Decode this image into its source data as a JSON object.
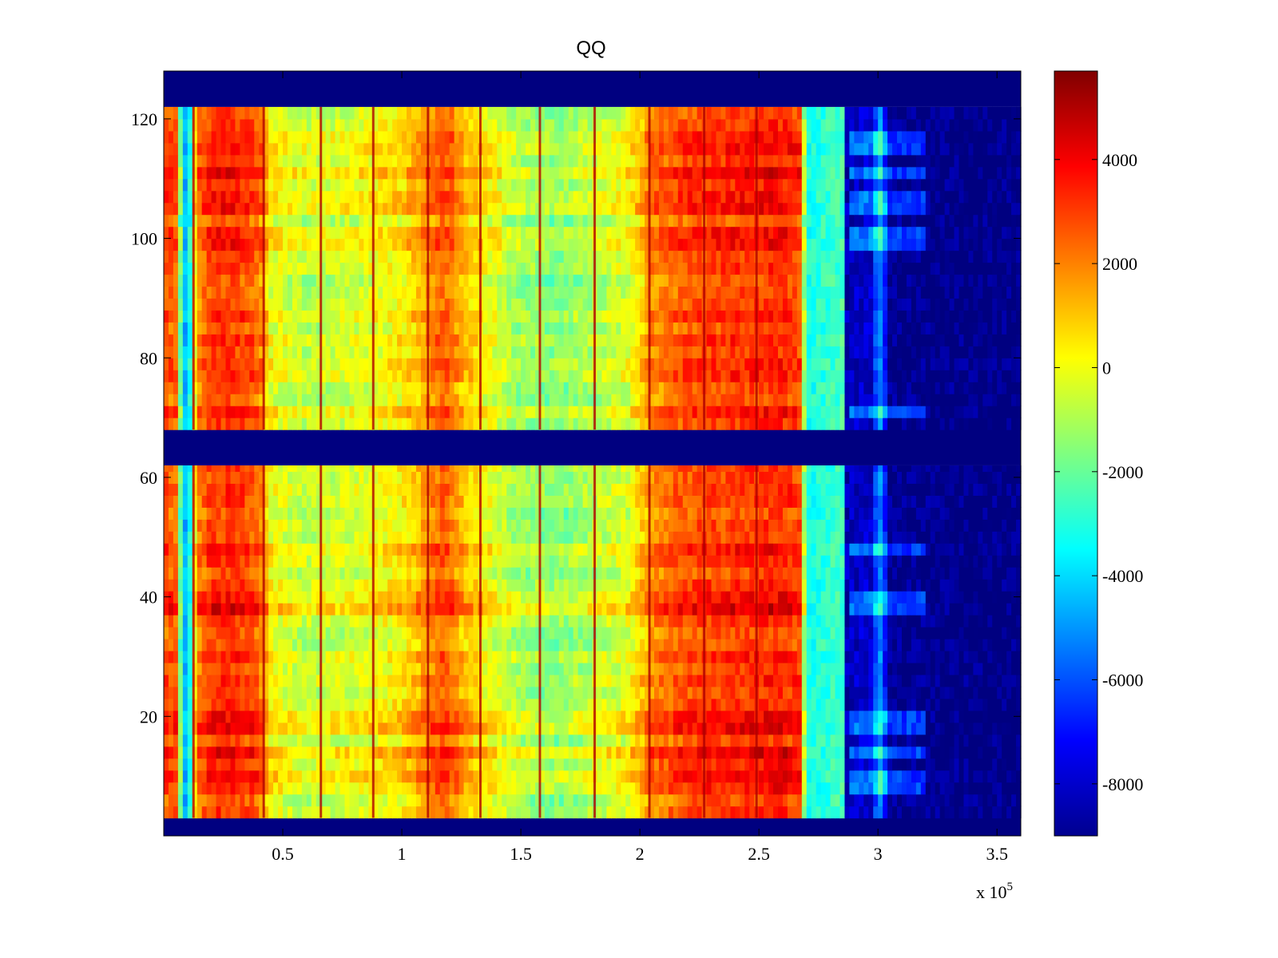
{
  "chart_data": {
    "type": "heatmap",
    "title": "QQ",
    "xlabel": "",
    "ylabel": "",
    "x_exponent_label": "x 10",
    "x_exponent_power": "5",
    "xlim": [
      0,
      3.6
    ],
    "ylim": [
      0,
      128
    ],
    "x_ticks": [
      0.5,
      1,
      1.5,
      2,
      2.5,
      3,
      3.5
    ],
    "x_tick_labels": [
      "0.5",
      "1",
      "1.5",
      "2",
      "2.5",
      "3",
      "3.5"
    ],
    "y_ticks": [
      20,
      40,
      60,
      80,
      100,
      120
    ],
    "y_tick_labels": [
      "20",
      "40",
      "60",
      "80",
      "100",
      "120"
    ],
    "colormap": "jet",
    "colorbar": {
      "range": [
        -9000,
        5700
      ],
      "ticks": [
        -8000,
        -6000,
        -4000,
        -2000,
        0,
        2000,
        4000
      ],
      "tick_labels": [
        "-8000",
        "-6000",
        "-4000",
        "-2000",
        "0",
        "2000",
        "4000"
      ]
    },
    "row_bands": [
      {
        "y_from": 0,
        "y_to": 3,
        "level": "min"
      },
      {
        "y_from": 3,
        "y_to": 62,
        "level": "data"
      },
      {
        "y_from": 62,
        "y_to": 68,
        "level": "min"
      },
      {
        "y_from": 68,
        "y_to": 122,
        "level": "data"
      },
      {
        "y_from": 122,
        "y_to": 128,
        "level": "min"
      }
    ],
    "column_profile": [
      {
        "x": 0.0,
        "value": 2600
      },
      {
        "x": 0.05,
        "value": 2400
      },
      {
        "x": 0.08,
        "value": -4200
      },
      {
        "x": 0.1,
        "value": -4800
      },
      {
        "x": 0.14,
        "value": 1800
      },
      {
        "x": 0.2,
        "value": 3000
      },
      {
        "x": 0.3,
        "value": 3100
      },
      {
        "x": 0.4,
        "value": 2400
      },
      {
        "x": 0.45,
        "value": 0
      },
      {
        "x": 0.6,
        "value": -800
      },
      {
        "x": 0.8,
        "value": -400
      },
      {
        "x": 1.0,
        "value": 300
      },
      {
        "x": 1.1,
        "value": 1500
      },
      {
        "x": 1.18,
        "value": 2600
      },
      {
        "x": 1.25,
        "value": 1200
      },
      {
        "x": 1.35,
        "value": 0
      },
      {
        "x": 1.5,
        "value": -1200
      },
      {
        "x": 1.65,
        "value": -1600
      },
      {
        "x": 1.8,
        "value": -900
      },
      {
        "x": 1.95,
        "value": -300
      },
      {
        "x": 2.05,
        "value": 1800
      },
      {
        "x": 2.2,
        "value": 2700
      },
      {
        "x": 2.4,
        "value": 3000
      },
      {
        "x": 2.6,
        "value": 3300
      },
      {
        "x": 2.67,
        "value": 2800
      },
      {
        "x": 2.7,
        "value": -3200
      },
      {
        "x": 2.85,
        "value": -2500
      },
      {
        "x": 2.87,
        "value": -8200
      },
      {
        "x": 2.98,
        "value": -7800
      },
      {
        "x": 3.0,
        "value": -4500
      },
      {
        "x": 3.02,
        "value": -6000
      },
      {
        "x": 3.05,
        "value": -8800
      },
      {
        "x": 3.6,
        "value": -9000
      }
    ],
    "vertical_lines_x": [
      0.125,
      0.42,
      0.66,
      0.88,
      1.11,
      1.33,
      1.58,
      1.81,
      2.04,
      2.27,
      2.49
    ],
    "highlight_rows_y": [
      9,
      14,
      19,
      39,
      48,
      71,
      100,
      106,
      111,
      116
    ]
  }
}
